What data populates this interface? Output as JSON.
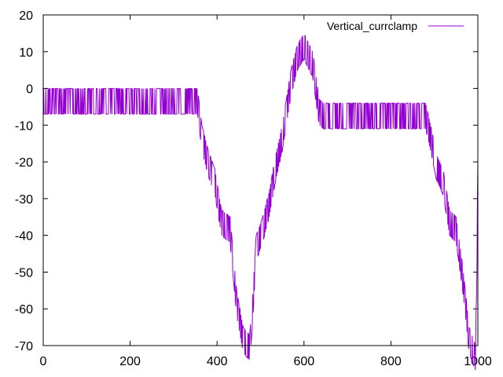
{
  "chart_data": {
    "type": "line",
    "title": "",
    "xlabel": "",
    "ylabel": "",
    "xlim": [
      0,
      1000
    ],
    "ylim": [
      -70,
      20
    ],
    "xticks": [
      0,
      200,
      400,
      600,
      800,
      1000
    ],
    "yticks": [
      20,
      10,
      0,
      -10,
      -20,
      -30,
      -40,
      -50,
      -60,
      -70
    ],
    "grid": false,
    "legend_position": "top-right",
    "series": [
      {
        "name": "Vertical_currclamp",
        "color": "#9400d3",
        "noise_band": 7,
        "x": [
          0,
          260,
          355,
          365,
          380,
          395,
          410,
          430,
          445,
          460,
          475,
          480,
          490,
          505,
          520,
          535,
          550,
          570,
          585,
          600,
          620,
          635,
          645,
          700,
          800,
          880,
          895,
          905,
          920,
          935,
          950,
          965,
          980,
          995,
          1000
        ],
        "values": [
          0,
          0,
          0,
          -10,
          -17,
          -22,
          -33,
          -35,
          -55,
          -65,
          -67,
          -60,
          -40,
          -35,
          -28,
          -18,
          -10,
          5,
          12,
          15,
          10,
          -3,
          -4,
          -4,
          -4,
          -4,
          -12,
          -18,
          -22,
          -33,
          -35,
          -48,
          -65,
          -70,
          -20
        ]
      }
    ]
  }
}
